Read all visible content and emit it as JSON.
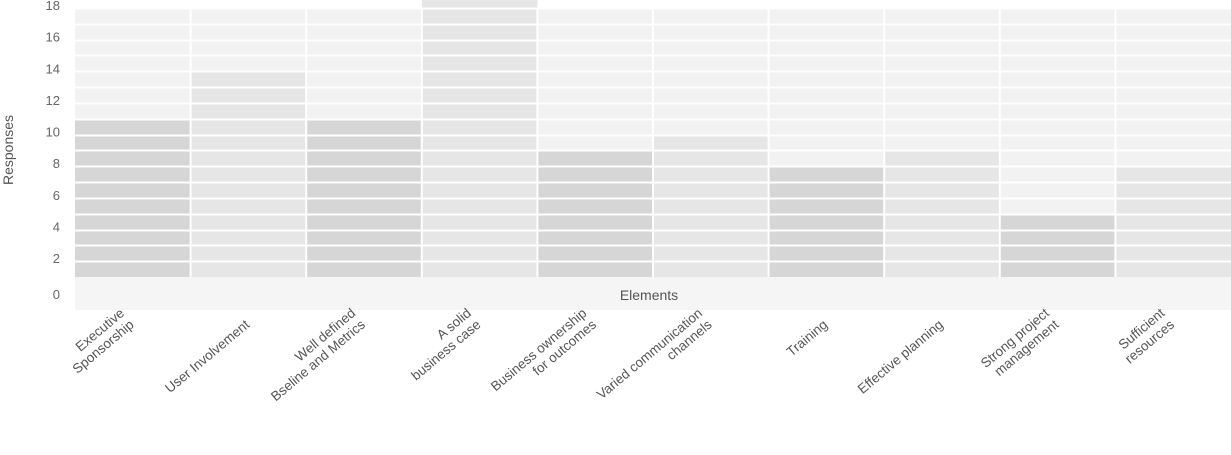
{
  "chart_data": {
    "type": "bar",
    "ylabel": "Responses",
    "xlabel": "Elements",
    "ylim": [
      0,
      18
    ],
    "yticks": [
      0,
      2,
      4,
      6,
      8,
      10,
      12,
      14,
      16,
      18
    ],
    "grid": true,
    "categories": [
      "Executive Sponsorship",
      "User Involvement",
      "Well defined Bseline and Metrics",
      "A solid business case",
      "Business ownership for outcomes",
      "Varied communication channels",
      "Training",
      "Effective planning",
      "Strong project management",
      "Sufficient resources"
    ],
    "category_label_lines": [
      [
        "Executive",
        "Sponsorship"
      ],
      [
        "User Involvement"
      ],
      [
        "Well defined",
        "Bseline and Metrics"
      ],
      [
        "A solid",
        "business case"
      ],
      [
        "Business ownership",
        "for outcomes"
      ],
      [
        "Varied communication",
        "channels"
      ],
      [
        "Training"
      ],
      [
        "Effective planning"
      ],
      [
        "Strong project",
        "management"
      ],
      [
        "Sufficient",
        "resources"
      ]
    ],
    "values": [
      10,
      13,
      10,
      18,
      8,
      9,
      7,
      8,
      4,
      7
    ],
    "colors": {
      "bar_dark": "#d6d6d6",
      "bar_light": "#e6e6e6",
      "plot_bg": "#f2f2f2",
      "floor_bg": "#f5f5f5",
      "grid": "#ffffff"
    }
  }
}
